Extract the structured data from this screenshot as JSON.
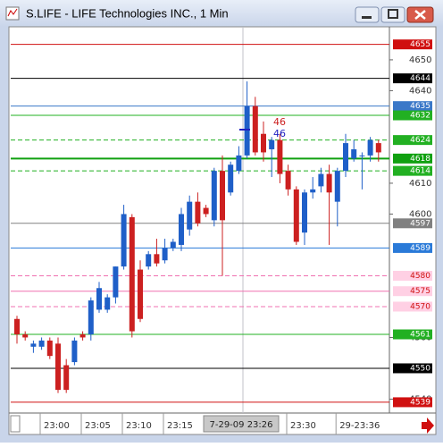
{
  "chart_data": {
    "type": "candlestick",
    "title": "S.LIFE - LIFE Technologies INC., 1 Min",
    "categories": [
      null,
      null,
      null,
      null,
      null,
      "23:00",
      null,
      null,
      null,
      null,
      "23:05",
      null,
      null,
      null,
      null,
      "23:10",
      null,
      null,
      null,
      null,
      "23:15",
      null,
      null,
      null,
      null,
      null,
      null,
      null,
      null,
      null,
      null,
      null,
      null,
      null,
      null,
      "23:30",
      null,
      null,
      null,
      null,
      null,
      "29-23:36",
      null,
      null,
      null
    ],
    "open": [
      4566,
      4561,
      4557,
      4557,
      4559,
      4558,
      4551,
      4552,
      4561,
      4561,
      4569,
      4569,
      4573,
      4583,
      4599,
      4582,
      4583,
      4587,
      4585,
      4589,
      4590,
      4595,
      4604,
      4602,
      4598,
      4614,
      4607,
      4614,
      4619,
      4635,
      4626,
      4621,
      4624,
      4614,
      4608,
      4594,
      4607,
      4609,
      4613,
      4604,
      4614,
      4618,
      4619,
      4619,
      4623
    ],
    "high": [
      4567,
      4562,
      4559,
      4560,
      4560,
      4560,
      4553,
      4560,
      4562,
      4573,
      4578,
      4574,
      4583,
      4603,
      4600,
      4585,
      4588,
      4592,
      4592,
      4592,
      4602,
      4606,
      4607,
      4603,
      4615,
      4619,
      4617,
      4622,
      4643,
      4638,
      4630,
      4625,
      4626,
      4616,
      4609,
      4608,
      4612,
      4615,
      4616,
      4615,
      4626,
      4624,
      4620,
      4625,
      4624
    ],
    "low": [
      4558,
      4559,
      4555,
      4556,
      4553,
      4542,
      4542,
      4551,
      4559,
      4559,
      4568,
      4568,
      4571,
      4582,
      4560,
      4565,
      4582,
      4583,
      4584,
      4588,
      4588,
      4593,
      4596,
      4599,
      4596,
      4580,
      4606,
      4613,
      4618,
      4619,
      4617,
      4612,
      4610,
      4606,
      4590,
      4590,
      4605,
      4607,
      4590,
      4596,
      4612,
      4617,
      4608,
      4617,
      4617
    ],
    "close": [
      4561,
      4560,
      4558,
      4559,
      4554,
      4543,
      4543,
      4559,
      4560,
      4572,
      4576,
      4573,
      4583,
      4600,
      4562,
      4566,
      4587,
      4584,
      4589,
      4591,
      4600,
      4604,
      4597,
      4600,
      4614,
      4598,
      4616,
      4619,
      4635,
      4620,
      4620,
      4624,
      4613,
      4608,
      4591,
      4607,
      4608,
      4613,
      4607,
      4614,
      4623,
      4621,
      4619,
      4624,
      4620
    ],
    "up_color": "#1f5fc8",
    "down_color": "#cc2020",
    "ylim": [
      4535.5,
      4660.7
    ],
    "yticks": [
      4650,
      4640,
      4610,
      4600,
      4560,
      4540
    ],
    "levels": [
      {
        "value": 4655,
        "color": "#d01010",
        "style": "solid"
      },
      {
        "value": 4644,
        "color": "#000000",
        "style": "solid"
      },
      {
        "value": 4635,
        "color": "#3a78c8",
        "style": "solid"
      },
      {
        "value": 4632,
        "color": "#22b022",
        "style": "solid"
      },
      {
        "value": 4624,
        "color": "#22b022",
        "style": "dashed"
      },
      {
        "value": 4618,
        "color": "#10a010",
        "style": "thick"
      },
      {
        "value": 4614,
        "color": "#22b022",
        "style": "dashed"
      },
      {
        "value": 4597,
        "color": "#808080",
        "style": "solid"
      },
      {
        "value": 4589,
        "color": "#2a7ad8",
        "style": "solid"
      },
      {
        "value": 4580,
        "color": "#f070b0",
        "style": "dashed"
      },
      {
        "value": 4575,
        "color": "#f070b0",
        "style": "solid"
      },
      {
        "value": 4570,
        "color": "#f070b0",
        "style": "dashed"
      },
      {
        "value": 4561,
        "color": "#22b022",
        "style": "solid"
      },
      {
        "value": 4550,
        "color": "#000000",
        "style": "solid"
      },
      {
        "value": 4539,
        "color": "#d01010",
        "style": "solid"
      }
    ],
    "crosshair_label": "7-29-09 23:26",
    "annotations": [
      {
        "text": "46",
        "color": "#cc2020"
      },
      {
        "text": "46",
        "color": "#2020c0"
      }
    ]
  }
}
